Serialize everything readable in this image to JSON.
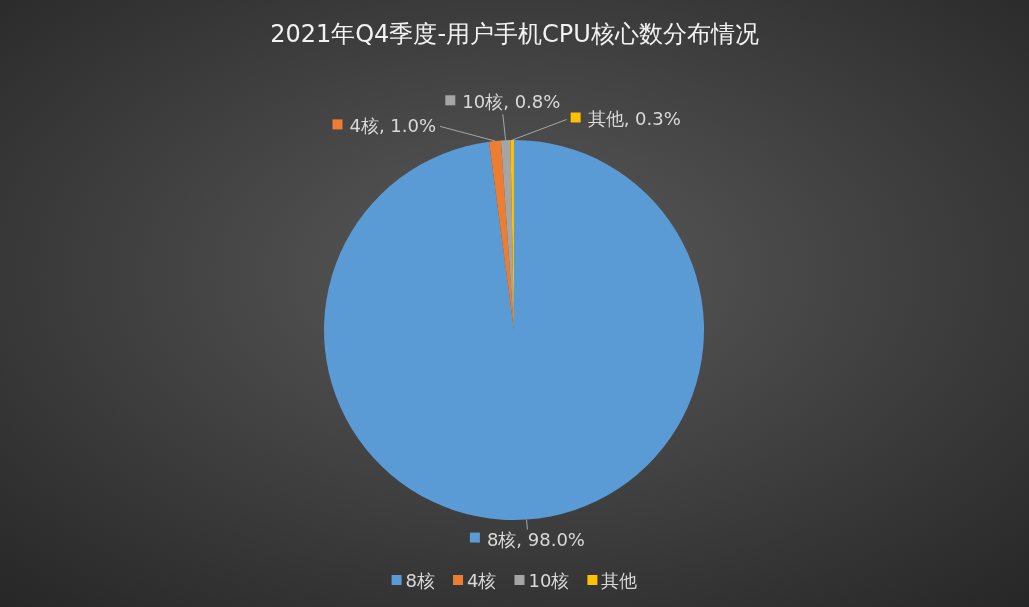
{
  "chart_data": {
    "type": "pie",
    "title": "2021年Q4季度-用户手机CPU核心数分布情况",
    "categories": [
      "8核",
      "4核",
      "10核",
      "其他"
    ],
    "values": [
      98.0,
      1.0,
      0.8,
      0.3
    ],
    "colors": [
      "#5b9bd5",
      "#ed7d31",
      "#a5a5a5",
      "#ffc000"
    ],
    "value_labels": [
      "8核, 98.0%",
      "4核, 1.0%",
      "10核, 0.8%",
      "其他, 0.3%"
    ],
    "legend": "bottom"
  }
}
